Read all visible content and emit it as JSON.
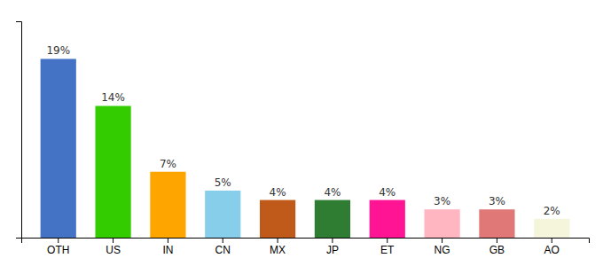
{
  "chart_data": {
    "type": "bar",
    "categories": [
      "OTH",
      "US",
      "IN",
      "CN",
      "MX",
      "JP",
      "ET",
      "NG",
      "GB",
      "AO"
    ],
    "values": [
      19,
      14,
      7,
      5,
      4,
      4,
      4,
      3,
      3,
      2
    ],
    "value_labels": [
      "19%",
      "14%",
      "7%",
      "5%",
      "4%",
      "4%",
      "4%",
      "3%",
      "3%",
      "2%"
    ],
    "colors": [
      "#4472C4",
      "#33CC00",
      "#FFA500",
      "#87CEEB",
      "#C05A1A",
      "#2E7D32",
      "#FF1493",
      "#FFB6C1",
      "#E07878",
      "#F5F5DC"
    ],
    "ylim": [
      0,
      23
    ],
    "data_labels": true,
    "tick_labels": "x",
    "grid": false
  }
}
